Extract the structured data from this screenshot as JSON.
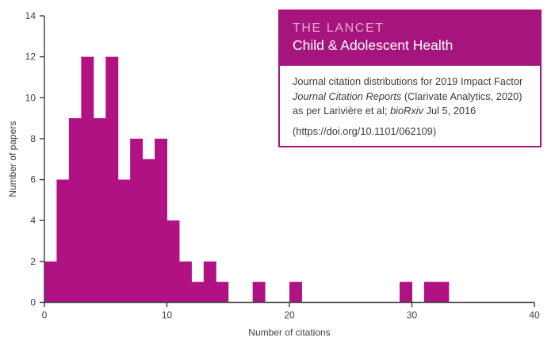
{
  "colors": {
    "bar": "#B01283",
    "header_bg": "#A6157E",
    "title_pink": "#E9A8CE",
    "title_white": "#FFFFFF",
    "body_text": "#3B3B3B",
    "axis": "#3F3F3F",
    "background": "#FFFFFF"
  },
  "infobox": {
    "title_line1": "THE LANCET",
    "title_line2": "Child & Adolescent Health",
    "body_line1": "Journal citation distributions for 2019 Impact Factor",
    "body_line2_italic": "Journal Citation Reports",
    "body_line2_rest": " (Clarivate Analytics, 2020)",
    "body_line3_pre": "as per Larivière et al; ",
    "body_line3_italic": "bioRxiv",
    "body_line3_rest": " Jul 5, 2016",
    "body_line4": "(https://doi.org/10.1101/062109)"
  },
  "chart_data": {
    "type": "bar",
    "title": "",
    "xlabel": "Number of citations",
    "ylabel": "Number of papers",
    "xlim": [
      0,
      40
    ],
    "ylim": [
      0,
      14
    ],
    "x_ticks": [
      0,
      10,
      20,
      30,
      40
    ],
    "y_ticks": [
      0,
      2,
      4,
      6,
      8,
      10,
      12,
      14
    ],
    "grid": false,
    "legend": "none",
    "bar_color": "#B01283",
    "bin_width": 1,
    "bin_starts": [
      0,
      1,
      2,
      3,
      4,
      5,
      6,
      7,
      8,
      9,
      10,
      11,
      12,
      13,
      14,
      15,
      16,
      17,
      18,
      19,
      20,
      21,
      22,
      23,
      24,
      25,
      26,
      27,
      28,
      29,
      30,
      31,
      32,
      33,
      34,
      35,
      36,
      37,
      38,
      39
    ],
    "counts": [
      2,
      6,
      9,
      12,
      9,
      12,
      6,
      8,
      7,
      8,
      4,
      2,
      1,
      2,
      1,
      0,
      0,
      1,
      0,
      0,
      1,
      0,
      0,
      0,
      0,
      0,
      0,
      0,
      0,
      1,
      0,
      1,
      1,
      0,
      0,
      0,
      0,
      0,
      0,
      0
    ]
  }
}
